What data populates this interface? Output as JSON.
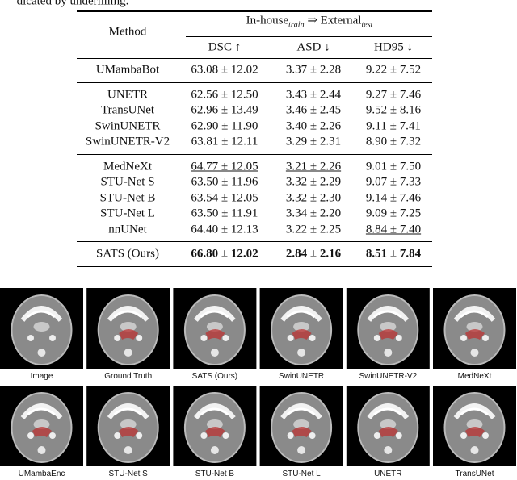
{
  "caption_fragment": "dicated by underlining.",
  "table": {
    "method_header": "Method",
    "group_header": {
      "source": "In-house",
      "source_sub": "train",
      "arrow": "⇒",
      "target": "External",
      "target_sub": "test"
    },
    "metric_headers": [
      "DSC ↑",
      "ASD ↓",
      "HD95 ↓"
    ],
    "groups": [
      [
        {
          "cells": [
            "UMambaBot",
            "63.08 ± 12.02",
            "3.37 ± 2.28",
            "9.22 ± 7.52"
          ]
        }
      ],
      [
        {
          "cells": [
            "UNETR",
            "62.56 ± 12.50",
            "3.43 ± 2.44",
            "9.27 ± 7.46"
          ]
        },
        {
          "cells": [
            "TransUNet",
            "62.96 ± 13.49",
            "3.46 ± 2.45",
            "9.52 ± 8.16"
          ]
        },
        {
          "cells": [
            "SwinUNETR",
            "62.90 ± 11.90",
            "3.40 ± 2.26",
            "9.11 ± 7.41"
          ]
        },
        {
          "cells": [
            "SwinUNETR-V2",
            "63.81 ± 12.11",
            "3.29 ± 2.31",
            "8.90 ± 7.32"
          ]
        }
      ],
      [
        {
          "cells": [
            "MedNeXt",
            "64.77 ± 12.05",
            "3.21 ± 2.26",
            "9.01 ± 7.50"
          ],
          "underline": [
            1,
            2
          ]
        },
        {
          "cells": [
            "STU-Net S",
            "63.50 ± 11.96",
            "3.32 ± 2.29",
            "9.07 ± 7.33"
          ]
        },
        {
          "cells": [
            "STU-Net B",
            "63.54 ± 12.05",
            "3.32 ± 2.30",
            "9.14 ± 7.46"
          ]
        },
        {
          "cells": [
            "STU-Net L",
            "63.50 ± 11.91",
            "3.34 ± 2.20",
            "9.09 ± 7.25"
          ]
        },
        {
          "cells": [
            "nnUNet",
            "64.40 ± 12.13",
            "3.22 ± 2.25",
            "8.84 ± 7.40"
          ],
          "underline": [
            3
          ]
        }
      ],
      [
        {
          "cells": [
            "SATS (Ours)",
            "66.80 ± 12.02",
            "2.84 ± 2.16",
            "8.51 ± 7.84"
          ],
          "bold": [
            1,
            2,
            3
          ]
        }
      ]
    ]
  },
  "figure": {
    "rows": [
      [
        "Image",
        "Ground Truth",
        "SATS (Ours)",
        "SwinUNETR",
        "SwinUNETR-V2",
        "MedNeXt"
      ],
      [
        "UMambaEnc",
        "STU-Net S",
        "STU-Net B",
        "STU-Net L",
        "UNETR",
        "TransUNet"
      ]
    ]
  }
}
